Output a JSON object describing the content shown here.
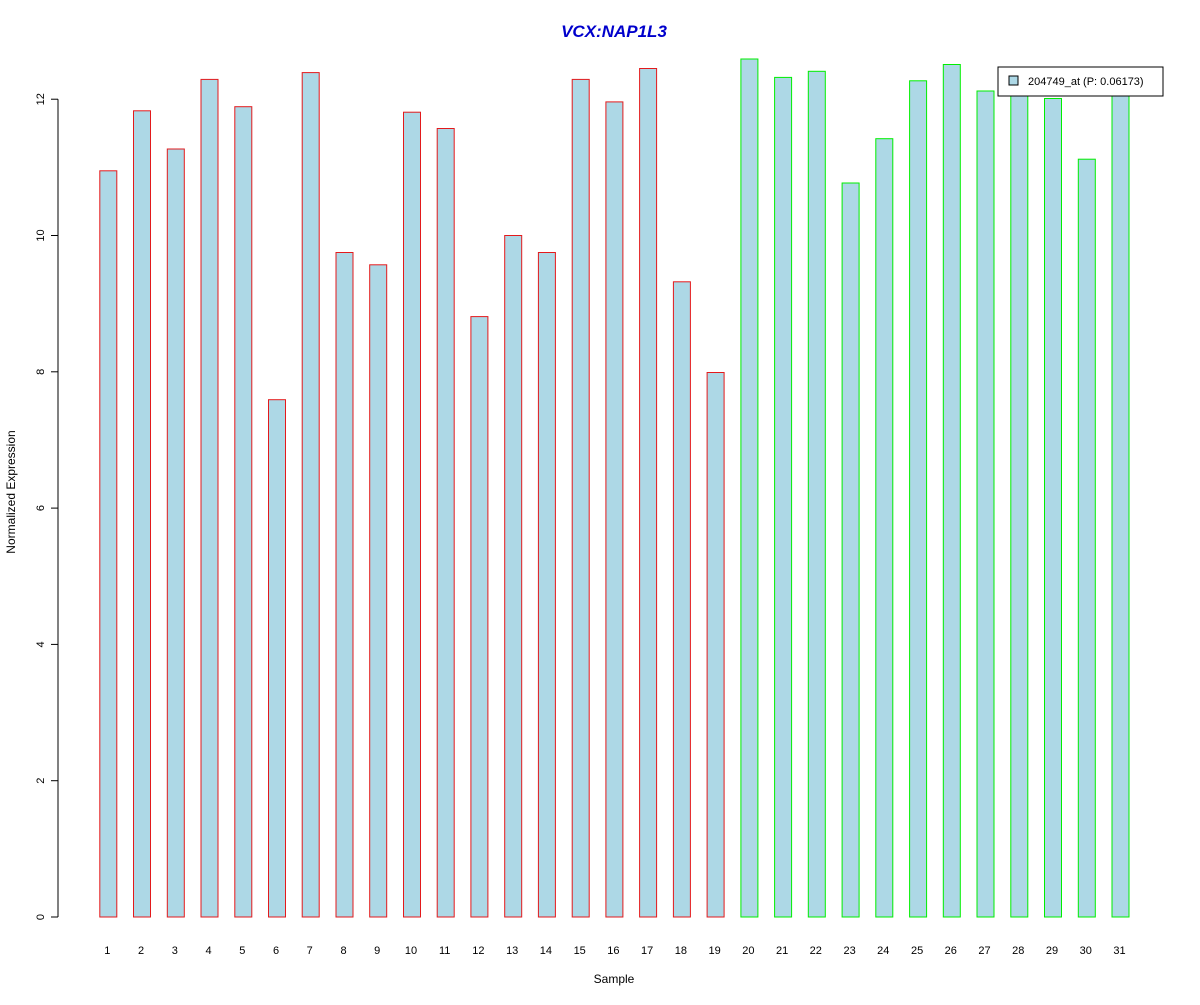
{
  "chart_data": {
    "type": "bar",
    "title": "VCX:NAP1L3",
    "xlabel": "Sample",
    "ylabel": "Normalized Expression",
    "categories": [
      "1",
      "2",
      "3",
      "4",
      "5",
      "6",
      "7",
      "8",
      "9",
      "10",
      "11",
      "12",
      "13",
      "14",
      "15",
      "16",
      "17",
      "18",
      "19",
      "20",
      "21",
      "22",
      "23",
      "24",
      "25",
      "26",
      "27",
      "28",
      "29",
      "30",
      "31"
    ],
    "series": [
      {
        "name": "204749_at (P: 0.06173)",
        "values": [
          10.95,
          11.83,
          11.27,
          12.29,
          11.89,
          7.59,
          12.39,
          9.75,
          9.57,
          11.81,
          11.57,
          8.81,
          10.0,
          9.75,
          12.29,
          11.96,
          12.45,
          9.32,
          7.99,
          12.59,
          12.32,
          12.41,
          10.77,
          11.42,
          12.27,
          12.51,
          12.12,
          12.07,
          12.01,
          11.12,
          12.05
        ]
      }
    ],
    "groups": [
      {
        "from": 1,
        "to": 19,
        "border_color": "#e31a1c"
      },
      {
        "from": 20,
        "to": 31,
        "border_color": "#00ee00"
      }
    ],
    "fill_color": "#add8e6",
    "title_color": "#0000cc",
    "yticks": [
      0,
      2,
      4,
      6,
      8,
      10,
      12
    ],
    "ylim": [
      0,
      12.59
    ],
    "grid": false,
    "legend_position": "top-right"
  }
}
